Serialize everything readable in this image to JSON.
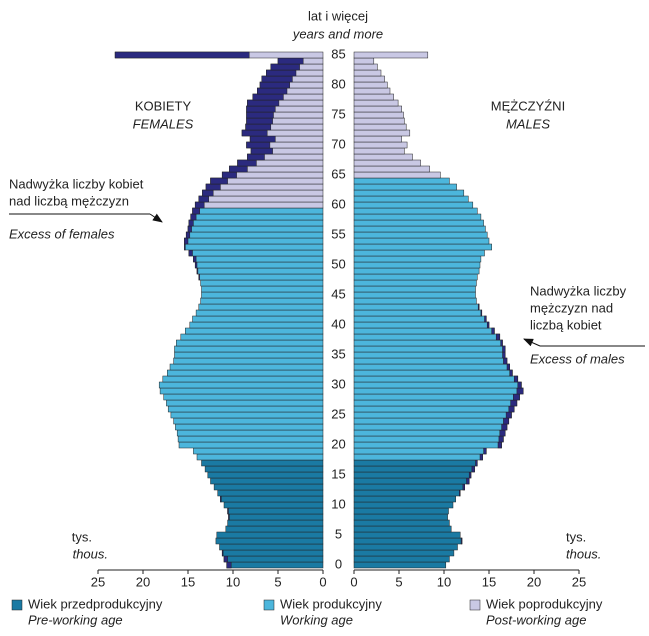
{
  "chart_data": {
    "type": "population_pyramid",
    "header": [
      "lat i więcej",
      "years and more"
    ],
    "unit": [
      "tys.",
      "thous."
    ],
    "ages": [
      0,
      1,
      2,
      3,
      4,
      5,
      6,
      7,
      8,
      9,
      10,
      11,
      12,
      13,
      14,
      15,
      16,
      17,
      18,
      19,
      20,
      21,
      22,
      23,
      24,
      25,
      26,
      27,
      28,
      29,
      30,
      31,
      32,
      33,
      34,
      35,
      36,
      37,
      38,
      39,
      40,
      41,
      42,
      43,
      44,
      45,
      46,
      47,
      48,
      49,
      50,
      51,
      52,
      53,
      54,
      55,
      56,
      57,
      58,
      59,
      60,
      61,
      62,
      63,
      64,
      65,
      66,
      67,
      68,
      69,
      70,
      71,
      72,
      73,
      74,
      75,
      76,
      77,
      78,
      79,
      80,
      81,
      82,
      83,
      84,
      85
    ],
    "ylim": [
      0,
      85
    ],
    "yticks": [
      0,
      5,
      10,
      15,
      20,
      25,
      30,
      35,
      40,
      45,
      50,
      55,
      60,
      65,
      70,
      75,
      80,
      85
    ],
    "xlim": [
      0,
      25
    ],
    "xticks": [
      0,
      5,
      10,
      15,
      20,
      25
    ],
    "excess_color": "#2b2a7f",
    "groups": [
      {
        "name": [
          "Wiek przedprodukcyjny",
          "Pre-working age"
        ],
        "color": "#1a7aa3"
      },
      {
        "name": [
          "Wiek produkcyjny",
          "Working age"
        ],
        "color": "#4cb6dc"
      },
      {
        "name": [
          "Wiek poprodukcyjny",
          "Post-working age"
        ],
        "color": "#c9c8e4"
      }
    ],
    "series": [
      {
        "name": [
          "KOBIETY",
          "FEMALES"
        ],
        "group_starts": [
          0,
          18,
          60
        ],
        "values": [
          10.7,
          11,
          11.2,
          11.5,
          11.9,
          11.8,
          10.8,
          10.6,
          10.5,
          10.6,
          11,
          11.4,
          11.7,
          12.1,
          12.5,
          12.8,
          13.1,
          13.5,
          14,
          14.4,
          16,
          16.1,
          16.2,
          16.4,
          16.6,
          16.9,
          17.2,
          17.4,
          17.7,
          18.1,
          18.2,
          17.8,
          17.3,
          17,
          16.6,
          16.5,
          16.5,
          16.3,
          15.8,
          15.3,
          14.8,
          14.5,
          14.1,
          13.8,
          13.6,
          13.5,
          13.5,
          13.6,
          13.8,
          14,
          14.2,
          14.4,
          14.9,
          15.4,
          15.4,
          15.2,
          15,
          14.9,
          14.7,
          14.5,
          14.2,
          13.8,
          13.4,
          13,
          12.5,
          11.2,
          10.4,
          9.5,
          8.4,
          8,
          8.5,
          8.1,
          9,
          8.6,
          8.5,
          8.5,
          8.5,
          8.4,
          7.8,
          7.3,
          7,
          6.8,
          6.3,
          5.8,
          5,
          23.1
        ]
      },
      {
        "name": [
          "MĘŻCZYŹNI",
          "MALES"
        ],
        "group_starts": [
          0,
          18,
          65
        ],
        "values": [
          10.2,
          10.6,
          11.1,
          11.5,
          12,
          11.8,
          10.8,
          10.6,
          10.4,
          10.5,
          11,
          11.3,
          11.8,
          12.3,
          12.8,
          13,
          13.4,
          13.7,
          14.3,
          14.7,
          16.4,
          16.6,
          16.8,
          17,
          17.2,
          17.5,
          17.8,
          18.1,
          18.4,
          18.8,
          18.6,
          18.2,
          17.6,
          17.3,
          17,
          16.8,
          16.8,
          16.5,
          16.2,
          15.6,
          15,
          14.7,
          14.2,
          13.9,
          13.6,
          13.5,
          13.5,
          13.6,
          13.7,
          13.9,
          14,
          14.1,
          14.5,
          15.3,
          15,
          14.8,
          14.6,
          14.4,
          14.1,
          13.7,
          13.2,
          12.7,
          12.2,
          11.4,
          10.6,
          9.6,
          8.4,
          7.4,
          6.5,
          5.6,
          5.9,
          5.3,
          6.2,
          5.8,
          5.6,
          5.5,
          5.3,
          4.9,
          4.4,
          4,
          3.7,
          3.4,
          3,
          2.6,
          2.2,
          8.2
        ]
      }
    ],
    "annotations": [
      {
        "text": [
          "Nadwyżka liczby kobiet",
          "nad liczbą mężczyzn"
        ],
        "text_en": "Excess of females"
      },
      {
        "text": [
          "Nadwyżka liczby",
          "mężczyzn nad",
          "liczbą kobiet"
        ],
        "text_en": "Excess of males"
      }
    ]
  }
}
